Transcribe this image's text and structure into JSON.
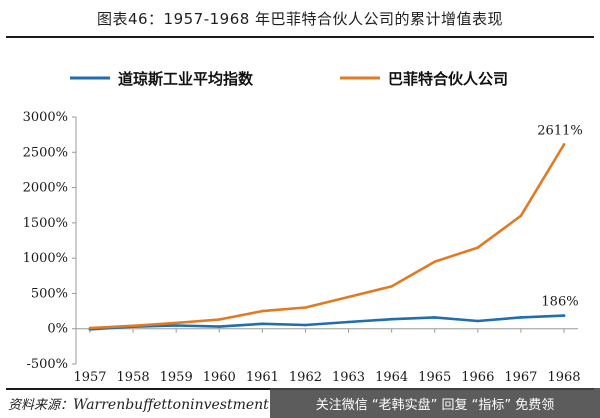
{
  "figure": {
    "title": "图表46：1957-1968 年巴菲特合伙人公司的累计增值表现"
  },
  "colors": {
    "dow": "#1f6eb0",
    "buffett": "#e07b24",
    "axis": "#9a9a9a",
    "text": "#1a1a1a"
  },
  "chart_data": {
    "type": "line",
    "title": "",
    "xlabel": "",
    "ylabel": "",
    "x": [
      "1957",
      "1958",
      "1959",
      "1960",
      "1961",
      "1962",
      "1963",
      "1964",
      "1965",
      "1966",
      "1967",
      "1968"
    ],
    "series": [
      {
        "name": "道琼斯工业平均指数",
        "color": "#1f6eb0",
        "values": [
          -9,
          28,
          45,
          30,
          70,
          52,
          95,
          135,
          160,
          110,
          160,
          186
        ]
      },
      {
        "name": "巴菲特合伙人公司",
        "color": "#e07b24",
        "values": [
          10,
          42,
          82,
          130,
          250,
          300,
          450,
          600,
          950,
          1150,
          1600,
          2611
        ]
      }
    ],
    "ylim": [
      -500,
      3000
    ],
    "yticks": [
      -500,
      0,
      500,
      1000,
      1500,
      2000,
      2500,
      3000
    ],
    "ytick_labels": [
      "-500%",
      "0%",
      "500%",
      "1000%",
      "1500%",
      "2000%",
      "2500%",
      "3000%"
    ],
    "annotations": [
      {
        "text": "2611%",
        "series": 1,
        "index": 11
      },
      {
        "text": "186%",
        "series": 0,
        "index": 11
      }
    ],
    "legend": "top",
    "grid": false
  },
  "source": {
    "label": "资料来源：",
    "value": "Warrenbuffettoninvestment"
  },
  "watermark": {
    "text": "关注微信 “老韩实盘” 回复 “指标” 免费领"
  }
}
